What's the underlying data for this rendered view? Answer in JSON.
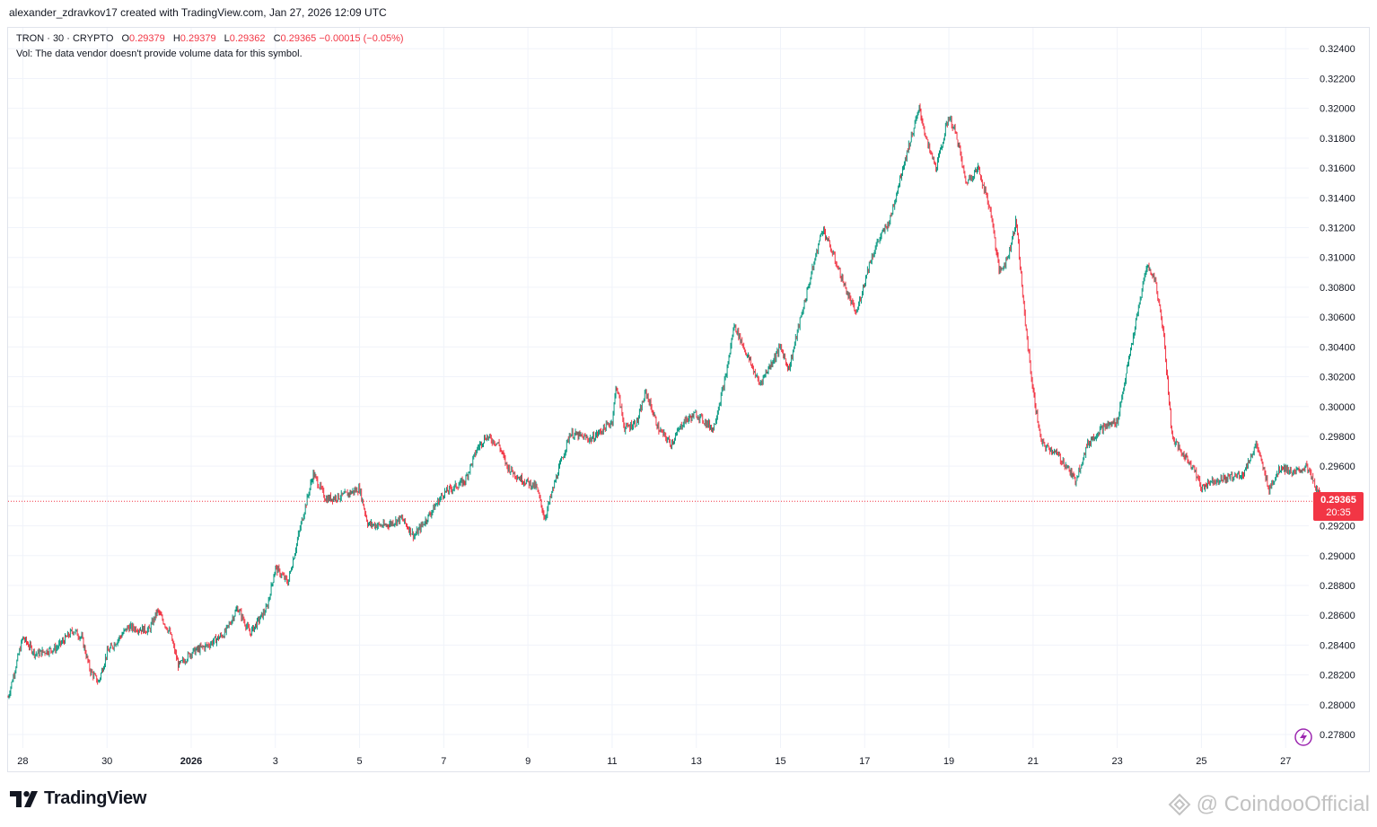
{
  "header": {
    "created_by": "alexander_zdravkov17 created with TradingView.com, Jan 27, 2026 12:09 UTC"
  },
  "legend": {
    "symbol": "TRON · 30 · CRYPTO",
    "open_label": "O",
    "open": "0.29379",
    "high_label": "H",
    "high": "0.29379",
    "low_label": "L",
    "low": "0.29362",
    "close_label": "C",
    "close": "0.29365",
    "change": "−0.00015 (−0.05%)",
    "volume_note": "Vol: The data vendor doesn't provide volume data for this symbol."
  },
  "last_price": {
    "value": "0.29365",
    "countdown": "20:35"
  },
  "footer": {
    "logo_text": "TradingView",
    "watermark": "@ CoindooOfficial"
  },
  "colors": {
    "up": "#089981",
    "down": "#f23645",
    "grid": "#f0f3fa",
    "last_price_line": "#f23645"
  },
  "icons": {
    "flash": "lightning-icon",
    "logo": "tradingview-logo-icon"
  },
  "chart_data": {
    "type": "candlestick",
    "symbol": "TRON",
    "interval": "30",
    "yaxis_ticks": [
      "0.27800",
      "0.28000",
      "0.28200",
      "0.28400",
      "0.28600",
      "0.28800",
      "0.29000",
      "0.29200",
      "0.29400",
      "0.29600",
      "0.29800",
      "0.30000",
      "0.30200",
      "0.30400",
      "0.30600",
      "0.30800",
      "0.31000",
      "0.31200",
      "0.31400",
      "0.31600",
      "0.31800",
      "0.32000",
      "0.32200",
      "0.32400"
    ],
    "ylim": [
      0.2771,
      0.3254
    ],
    "xaxis_ticks": [
      {
        "label": "28",
        "day": 0
      },
      {
        "label": "30",
        "day": 2
      },
      {
        "label": "2026",
        "day": 4
      },
      {
        "label": "3",
        "day": 6
      },
      {
        "label": "5",
        "day": 8
      },
      {
        "label": "7",
        "day": 10
      },
      {
        "label": "9",
        "day": 12
      },
      {
        "label": "11",
        "day": 14
      },
      {
        "label": "13",
        "day": 16
      },
      {
        "label": "15",
        "day": 18
      },
      {
        "label": "17",
        "day": 20
      },
      {
        "label": "19",
        "day": 22
      },
      {
        "label": "21",
        "day": 24
      },
      {
        "label": "23",
        "day": 26
      },
      {
        "label": "25",
        "day": 28
      },
      {
        "label": "27",
        "day": 30
      }
    ],
    "xlim_days": [
      -0.35,
      30.55
    ],
    "last_price": 0.29365,
    "approx_close_path": [
      [
        -0.35,
        0.2805
      ],
      [
        0.0,
        0.2845
      ],
      [
        0.3,
        0.2834
      ],
      [
        0.8,
        0.2838
      ],
      [
        1.2,
        0.285
      ],
      [
        1.4,
        0.2845
      ],
      [
        1.6,
        0.2823
      ],
      [
        1.8,
        0.2815
      ],
      [
        2.0,
        0.2835
      ],
      [
        2.5,
        0.2852
      ],
      [
        3.0,
        0.285
      ],
      [
        3.2,
        0.2863
      ],
      [
        3.5,
        0.2848
      ],
      [
        3.7,
        0.2826
      ],
      [
        4.0,
        0.2835
      ],
      [
        4.4,
        0.284
      ],
      [
        4.8,
        0.2848
      ],
      [
        5.1,
        0.2865
      ],
      [
        5.4,
        0.2848
      ],
      [
        5.8,
        0.2865
      ],
      [
        6.0,
        0.2892
      ],
      [
        6.3,
        0.2882
      ],
      [
        6.6,
        0.292
      ],
      [
        6.9,
        0.2955
      ],
      [
        7.2,
        0.2938
      ],
      [
        7.6,
        0.294
      ],
      [
        8.0,
        0.2945
      ],
      [
        8.2,
        0.2921
      ],
      [
        8.6,
        0.292
      ],
      [
        9.0,
        0.2925
      ],
      [
        9.3,
        0.2913
      ],
      [
        9.6,
        0.2925
      ],
      [
        10.0,
        0.2942
      ],
      [
        10.5,
        0.295
      ],
      [
        10.8,
        0.2972
      ],
      [
        11.0,
        0.298
      ],
      [
        11.3,
        0.2975
      ],
      [
        11.5,
        0.296
      ],
      [
        11.8,
        0.2952
      ],
      [
        12.2,
        0.2946
      ],
      [
        12.4,
        0.2925
      ],
      [
        12.7,
        0.2955
      ],
      [
        13.0,
        0.2982
      ],
      [
        13.5,
        0.2978
      ],
      [
        14.0,
        0.299
      ],
      [
        14.1,
        0.3015
      ],
      [
        14.3,
        0.2985
      ],
      [
        14.6,
        0.299
      ],
      [
        14.8,
        0.301
      ],
      [
        15.1,
        0.2985
      ],
      [
        15.4,
        0.2975
      ],
      [
        15.7,
        0.299
      ],
      [
        16.0,
        0.2995
      ],
      [
        16.4,
        0.2985
      ],
      [
        16.7,
        0.302
      ],
      [
        16.9,
        0.3055
      ],
      [
        17.2,
        0.3035
      ],
      [
        17.5,
        0.3015
      ],
      [
        17.8,
        0.303
      ],
      [
        18.0,
        0.304
      ],
      [
        18.2,
        0.3025
      ],
      [
        18.4,
        0.305
      ],
      [
        18.7,
        0.3085
      ],
      [
        19.0,
        0.312
      ],
      [
        19.3,
        0.3098
      ],
      [
        19.6,
        0.3075
      ],
      [
        19.8,
        0.3062
      ],
      [
        20.1,
        0.3095
      ],
      [
        20.3,
        0.311
      ],
      [
        20.6,
        0.3125
      ],
      [
        20.9,
        0.316
      ],
      [
        21.1,
        0.318
      ],
      [
        21.3,
        0.32
      ],
      [
        21.5,
        0.3175
      ],
      [
        21.7,
        0.316
      ],
      [
        22.0,
        0.3195
      ],
      [
        22.2,
        0.318
      ],
      [
        22.4,
        0.315
      ],
      [
        22.7,
        0.316
      ],
      [
        23.0,
        0.313
      ],
      [
        23.2,
        0.309
      ],
      [
        23.4,
        0.31
      ],
      [
        23.6,
        0.3125
      ],
      [
        23.8,
        0.306
      ],
      [
        24.0,
        0.301
      ],
      [
        24.2,
        0.2975
      ],
      [
        24.5,
        0.297
      ],
      [
        24.8,
        0.296
      ],
      [
        25.0,
        0.295
      ],
      [
        25.3,
        0.2975
      ],
      [
        25.6,
        0.2985
      ],
      [
        26.0,
        0.299
      ],
      [
        26.3,
        0.3035
      ],
      [
        26.5,
        0.3065
      ],
      [
        26.7,
        0.3095
      ],
      [
        26.9,
        0.3085
      ],
      [
        27.1,
        0.305
      ],
      [
        27.3,
        0.298
      ],
      [
        27.5,
        0.297
      ],
      [
        27.8,
        0.296
      ],
      [
        28.0,
        0.2945
      ],
      [
        28.2,
        0.295
      ],
      [
        28.6,
        0.2952
      ],
      [
        29.0,
        0.2955
      ],
      [
        29.3,
        0.2975
      ],
      [
        29.6,
        0.2945
      ],
      [
        29.9,
        0.296
      ],
      [
        30.2,
        0.2955
      ],
      [
        30.5,
        0.296
      ],
      [
        30.8,
        0.294
      ],
      [
        31.0,
        0.29365
      ]
    ]
  }
}
